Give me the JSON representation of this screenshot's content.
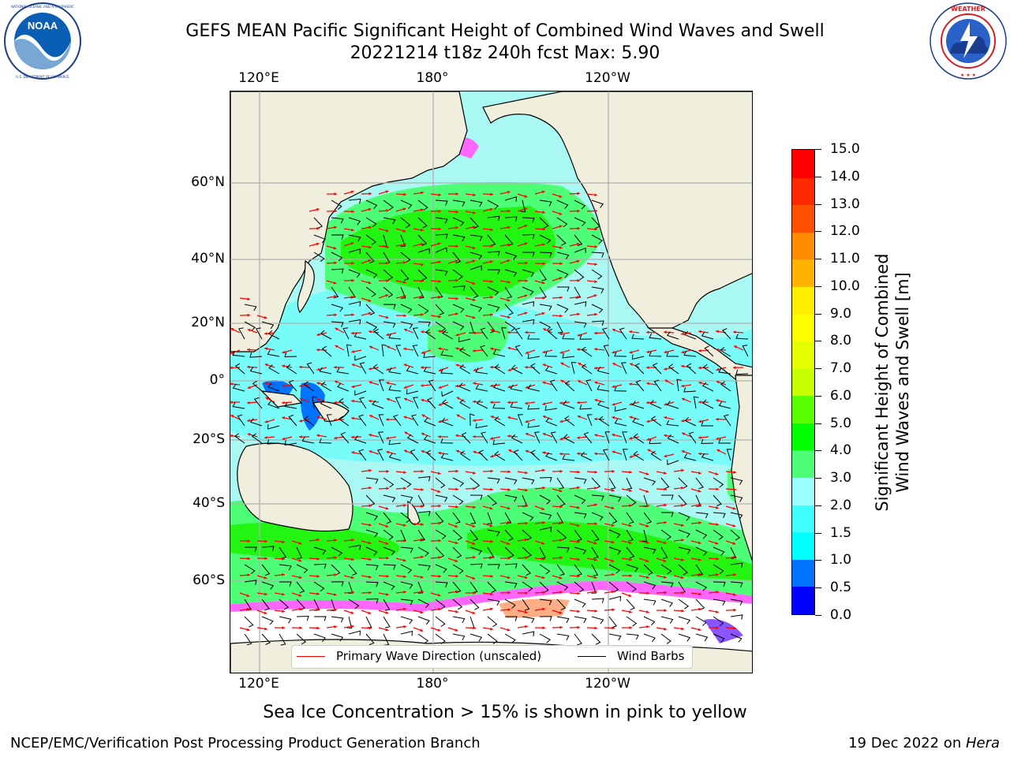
{
  "title": {
    "line1": "GEFS MEAN Pacific Significant Height of Combined Wind Waves and Swell",
    "line2": "20221214 t18z 240h fcst   Max: 5.90"
  },
  "logos": {
    "left": {
      "icon": "noaa-logo-icon",
      "text": "NOAA",
      "ring_text": "NATIONAL OCEANIC AND ATMOSPHERIC ADMINISTRATION · U.S. DEPARTMENT OF COMMERCE"
    },
    "right": {
      "icon": "nws-logo-icon",
      "ring_text": "NATIONAL WEATHER SERVICE"
    }
  },
  "map": {
    "lon_labels_top": [
      "120°E",
      "180°",
      "120°W"
    ],
    "lon_labels_bottom": [
      "120°E",
      "180°",
      "120°W"
    ],
    "lat_labels": [
      "60°N",
      "40°N",
      "20°N",
      "0°",
      "20°S",
      "40°S",
      "60°S"
    ],
    "land_color": "#f0eedc",
    "ocean_base_color": "#aaf8f4",
    "wave_arrow_color": "#ff0000",
    "wind_barb_color": "#000000"
  },
  "legend": {
    "placement": "lower-center",
    "items": [
      {
        "label": "Primary Wave Direction (unscaled)",
        "color": "#ff0000"
      },
      {
        "label": "Wind Barbs",
        "color": "#000000"
      }
    ]
  },
  "colorbar": {
    "title_line1": "Significant Height of Combined",
    "title_line2": "Wind Waves and Swell [m]",
    "ticks": [
      "0.0",
      "0.5",
      "1.0",
      "1.5",
      "2.0",
      "3.0",
      "4.0",
      "5.0",
      "6.0",
      "7.0",
      "8.0",
      "9.0",
      "10.0",
      "11.0",
      "12.0",
      "13.0",
      "14.0",
      "15.0"
    ],
    "colors": [
      "#0000ff",
      "#0073ff",
      "#00ffff",
      "#40ffff",
      "#99ffff",
      "#4cff76",
      "#00ff00",
      "#59ff00",
      "#c8ff00",
      "#e6ff00",
      "#ffff00",
      "#ffee00",
      "#ffb300",
      "#ff8c00",
      "#ff5000",
      "#ff2800",
      "#ff0000"
    ]
  },
  "sea_ice_note": "Sea Ice Concentration > 15% is shown in pink to yellow",
  "footer": {
    "left": "NCEP/EMC/Verification Post Processing Product Generation Branch",
    "right_prefix": "19 Dec 2022 on ",
    "right_machine": "Hera"
  }
}
